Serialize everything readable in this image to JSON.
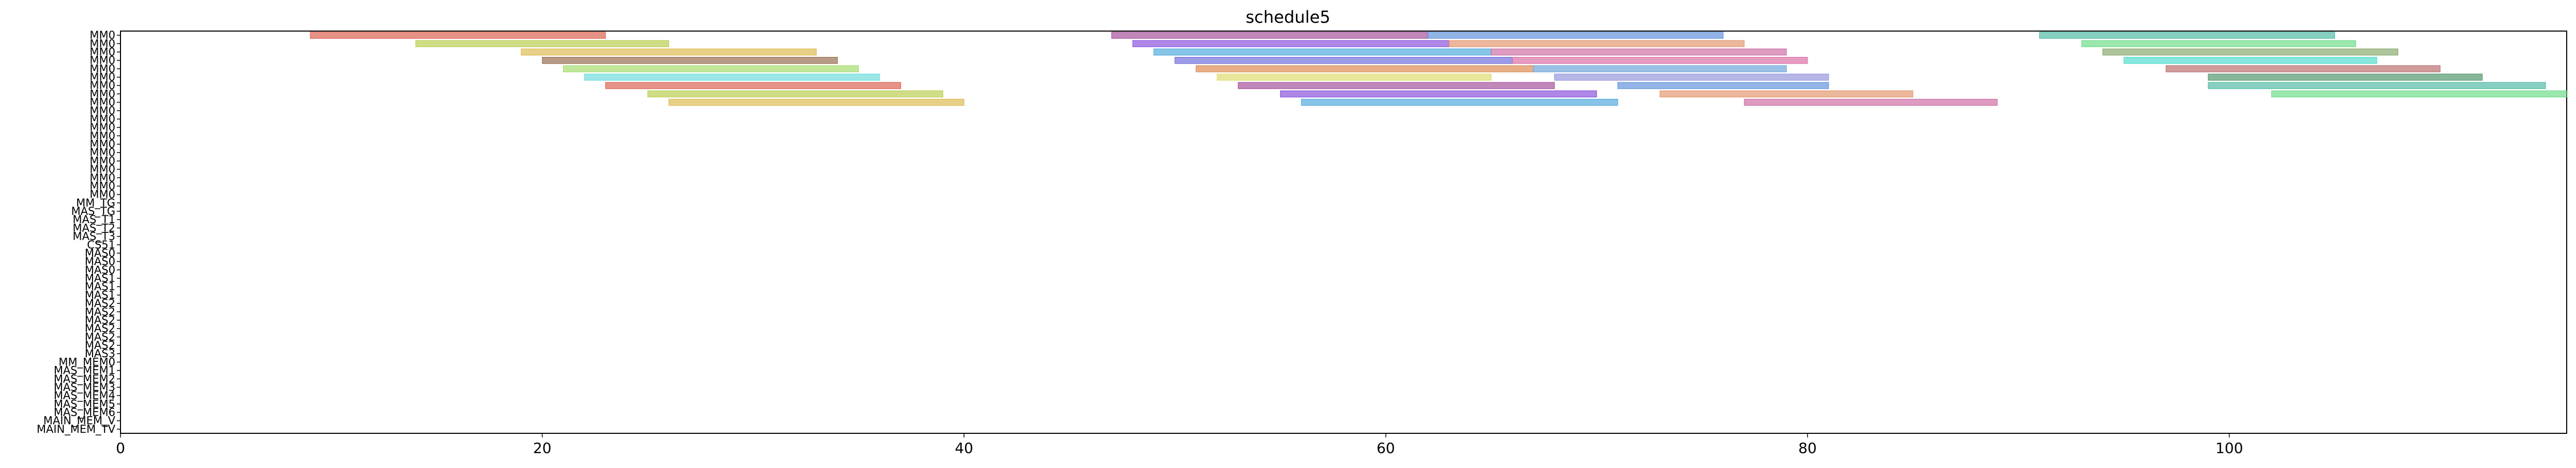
{
  "chart_data": {
    "type": "gantt",
    "title": "schedule5",
    "xlabel": "",
    "ylabel": "",
    "xlim": [
      0,
      116
    ],
    "x_ticks": [
      0,
      20,
      40,
      60,
      80,
      100
    ],
    "grid": false,
    "legend": "none",
    "rows": [
      "MM0",
      "MM0",
      "MM0",
      "MM0",
      "MM0",
      "MM0",
      "MM0",
      "MM0",
      "MM0",
      "MM0",
      "MM0",
      "MM0",
      "MM0",
      "MM0",
      "MM0",
      "MM0",
      "MM0",
      "MM0",
      "MM0",
      "MM0",
      "MM_TG",
      "MAS_TG",
      "MAS_T1",
      "MAS_T2",
      "MAS_T3",
      "CS51",
      "MAS0",
      "MAS0",
      "MAS0",
      "MAS1",
      "MAS1",
      "MAS1",
      "MAS2",
      "MAS2",
      "MAS2",
      "MAS2",
      "MAS2",
      "MAS2",
      "MAS3",
      "MM_MEM0",
      "MAS_MEM1",
      "MAS_MEM2",
      "MAS_MEM3",
      "MAS_MEM4",
      "MAS_MEM5",
      "MAS_MEM6",
      "MAIN_MEM_V",
      "MAIN_MEM_TV"
    ],
    "bars": [
      {
        "row": 0,
        "start": 9,
        "end": 23
      },
      {
        "row": 0,
        "start": 47,
        "end": 62
      },
      {
        "row": 0,
        "start": 62,
        "end": 76
      },
      {
        "row": 0,
        "start": 91,
        "end": 105
      },
      {
        "row": 1,
        "start": 14,
        "end": 26
      },
      {
        "row": 1,
        "start": 48,
        "end": 63
      },
      {
        "row": 1,
        "start": 63,
        "end": 77
      },
      {
        "row": 1,
        "start": 93,
        "end": 106
      },
      {
        "row": 2,
        "start": 19,
        "end": 33
      },
      {
        "row": 2,
        "start": 49,
        "end": 65
      },
      {
        "row": 2,
        "start": 65,
        "end": 79
      },
      {
        "row": 2,
        "start": 94,
        "end": 108
      },
      {
        "row": 3,
        "start": 20,
        "end": 34
      },
      {
        "row": 3,
        "start": 50,
        "end": 66
      },
      {
        "row": 3,
        "start": 66,
        "end": 80
      },
      {
        "row": 3,
        "start": 95,
        "end": 107
      },
      {
        "row": 4,
        "start": 21,
        "end": 35
      },
      {
        "row": 4,
        "start": 51,
        "end": 67
      },
      {
        "row": 4,
        "start": 67,
        "end": 79
      },
      {
        "row": 4,
        "start": 97,
        "end": 110
      },
      {
        "row": 5,
        "start": 22,
        "end": 36
      },
      {
        "row": 5,
        "start": 52,
        "end": 65
      },
      {
        "row": 5,
        "start": 68,
        "end": 81
      },
      {
        "row": 5,
        "start": 99,
        "end": 112
      },
      {
        "row": 6,
        "start": 23,
        "end": 37
      },
      {
        "row": 6,
        "start": 53,
        "end": 68
      },
      {
        "row": 6,
        "start": 71,
        "end": 81
      },
      {
        "row": 6,
        "start": 99,
        "end": 115
      },
      {
        "row": 7,
        "start": 25,
        "end": 39
      },
      {
        "row": 7,
        "start": 55,
        "end": 70
      },
      {
        "row": 7,
        "start": 73,
        "end": 85
      },
      {
        "row": 7,
        "start": 102,
        "end": 116
      },
      {
        "row": 8,
        "start": 26,
        "end": 40
      },
      {
        "row": 8,
        "start": 56,
        "end": 71
      },
      {
        "row": 8,
        "start": 77,
        "end": 89
      }
    ],
    "bar_colors": [
      "#d94f3d",
      "#9b3d8f",
      "#4f86d9",
      "#3db39b",
      "#b3c83d",
      "#7d3dd9",
      "#e08a5e",
      "#5ed97d",
      "#d9b33d",
      "#3da0d9",
      "#c85e9b",
      "#7da05e",
      "#8b5e3d",
      "#5e5ed9",
      "#d95e9b",
      "#3dd9c8",
      "#9bd95e",
      "#d97d3d",
      "#5e9bd9",
      "#b35e5e",
      "#5ed9d9",
      "#d9d95e",
      "#8b8bd9",
      "#3d8b5e"
    ]
  }
}
